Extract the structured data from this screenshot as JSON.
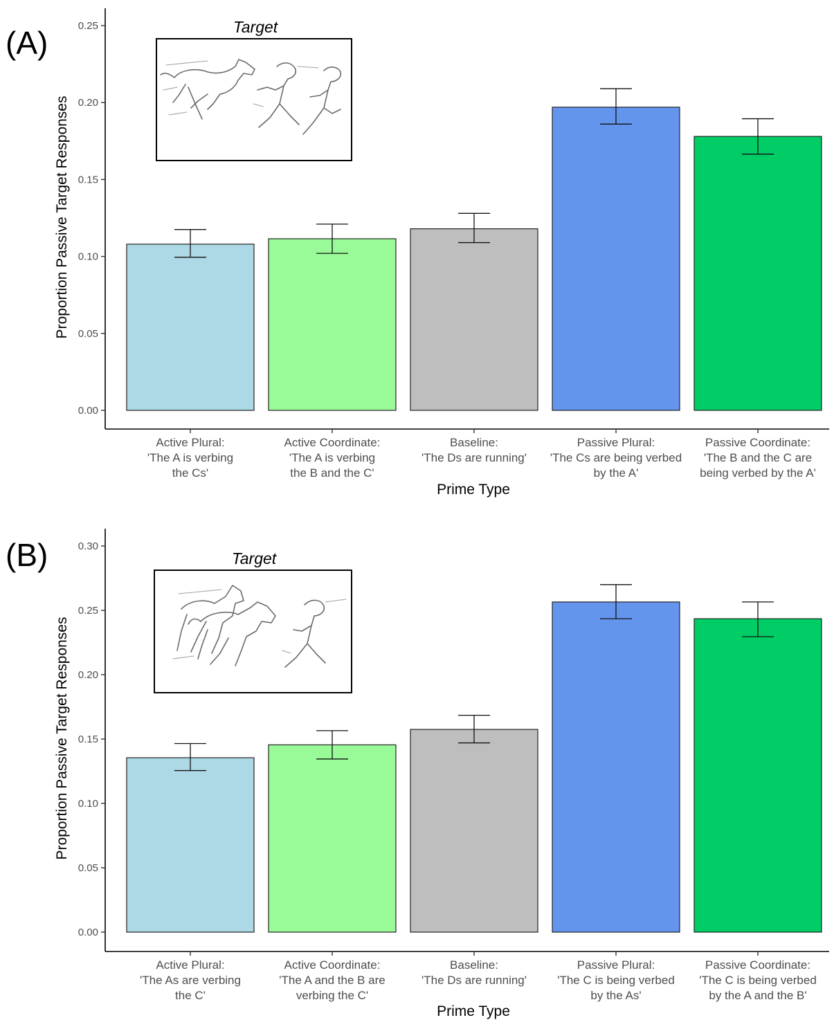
{
  "chart_data": [
    {
      "type": "bar",
      "panel_label": "(A)",
      "inset_title": "Target",
      "xlabel": "Prime Type",
      "ylabel": "Proportion Passive Target Responses",
      "ylim": [
        0,
        0.25
      ],
      "yticks": [
        "0.00",
        "0.05",
        "0.10",
        "0.15",
        "0.20",
        "0.25"
      ],
      "categories": [
        [
          "Active Plural:",
          "'The A is verbing",
          "the Cs'"
        ],
        [
          "Active Coordinate:",
          "'The A is verbing",
          "the B and the C'"
        ],
        [
          "Baseline:",
          "'The Ds are running'"
        ],
        [
          "Passive Plural:",
          "'The Cs are being verbed",
          "by the A'"
        ],
        [
          "Passive Coordinate:",
          "'The B and the C are",
          "being verbed by the A'"
        ]
      ],
      "values": [
        0.108,
        0.1115,
        0.118,
        0.197,
        0.178
      ],
      "error_low": [
        0.0995,
        0.102,
        0.109,
        0.186,
        0.1665
      ],
      "error_high": [
        0.1175,
        0.121,
        0.128,
        0.209,
        0.1895
      ],
      "colors": [
        "#add8e6",
        "#98fb98",
        "#bebebe",
        "#6495ed",
        "#00cd66"
      ],
      "grid": false
    },
    {
      "type": "bar",
      "panel_label": "(B)",
      "inset_title": "Target",
      "xlabel": "Prime Type",
      "ylabel": "Proportion Passive Target Responses",
      "ylim": [
        0,
        0.3
      ],
      "yticks": [
        "0.00",
        "0.05",
        "0.10",
        "0.15",
        "0.20",
        "0.25",
        "0.30"
      ],
      "categories": [
        [
          "Active Plural:",
          "'The As are verbing",
          "the C'"
        ],
        [
          "Active Coordinate:",
          "'The A and the B are",
          "verbing the C'"
        ],
        [
          "Baseline:",
          "'The Ds are running'"
        ],
        [
          "Passive Plural:",
          "'The C is being verbed",
          "by the As'"
        ],
        [
          "Passive Coordinate:",
          "'The C is being verbed",
          "by the A and the B'"
        ]
      ],
      "values": [
        0.1355,
        0.1455,
        0.1575,
        0.2565,
        0.2435
      ],
      "error_low": [
        0.1255,
        0.1345,
        0.147,
        0.2435,
        0.2295
      ],
      "error_high": [
        0.1465,
        0.1565,
        0.1685,
        0.27,
        0.2565
      ],
      "colors": [
        "#add8e6",
        "#98fb98",
        "#bebebe",
        "#6495ed",
        "#00cd66"
      ],
      "grid": false
    }
  ]
}
